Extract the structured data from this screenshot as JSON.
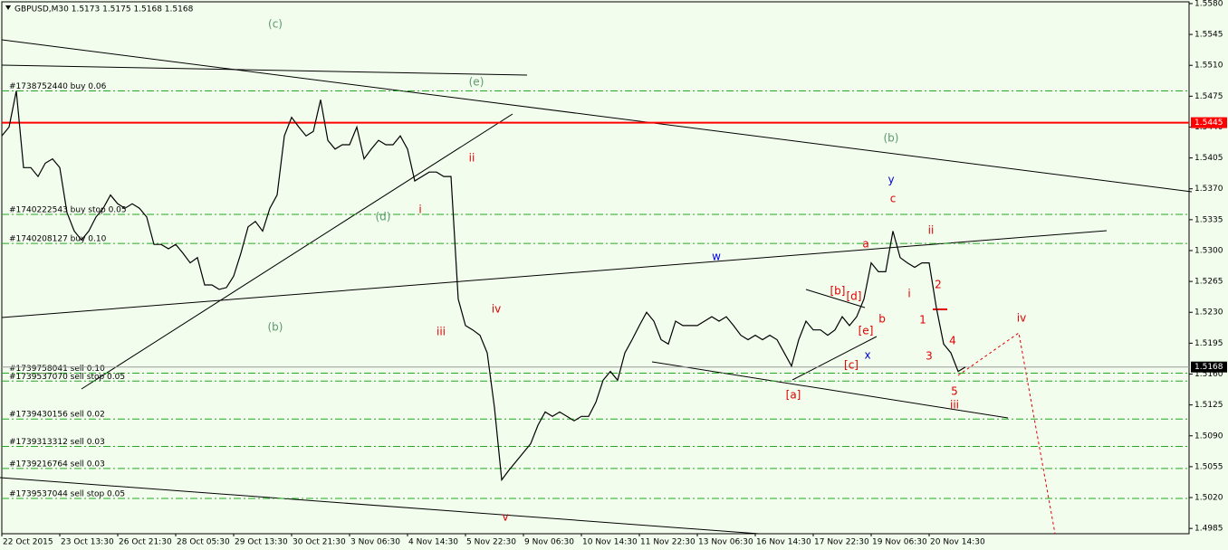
{
  "chart_data": {
    "type": "line",
    "title": "GBPUSD,M30  1.5173 1.5175 1.5168 1.5168",
    "color": "#000000",
    "categories": [
      "22 Oct 2015",
      null,
      null,
      null,
      null,
      null,
      null,
      null,
      "23 Oct 13:30",
      null,
      null,
      null,
      null,
      null,
      null,
      null,
      "26 Oct 21:30",
      null,
      null,
      null,
      null,
      null,
      null,
      null,
      "28 Oct 05:30",
      null,
      null,
      null,
      null,
      null,
      null,
      null,
      "29 Oct 13:30",
      null,
      null,
      null,
      null,
      null,
      null,
      null,
      "30 Oct 21:30",
      null,
      null,
      null,
      null,
      null,
      null,
      null,
      "3 Nov 06:30",
      null,
      null,
      null,
      null,
      null,
      null,
      null,
      "4 Nov 14:30",
      null,
      null,
      null,
      null,
      null,
      null,
      null,
      "5 Nov 22:30",
      null,
      null,
      null,
      null,
      null,
      null,
      null,
      "9 Nov 06:30",
      null,
      null,
      null,
      null,
      null,
      null,
      null,
      "10 Nov 14:30",
      null,
      null,
      null,
      null,
      null,
      null,
      null,
      "11 Nov 22:30",
      null,
      null,
      null,
      null,
      null,
      null,
      null,
      "13 Nov 06:30",
      null,
      null,
      null,
      null,
      null,
      null,
      null,
      "16 Nov 14:30",
      null,
      null,
      null,
      null,
      null,
      null,
      null,
      "17 Nov 22:30",
      null,
      null,
      null,
      null,
      null,
      null,
      null,
      "19 Nov 06:30",
      null,
      null,
      null,
      null,
      null,
      null,
      null,
      "20 Nov 14:30",
      null,
      null,
      null,
      null,
      null
    ],
    "values": [
      1.543,
      1.544,
      1.5481,
      1.5394,
      1.5394,
      1.5384,
      1.5399,
      1.5404,
      1.5394,
      1.5343,
      1.5322,
      1.5312,
      1.5322,
      1.5338,
      1.5348,
      1.5363,
      1.5353,
      1.5348,
      1.5353,
      1.5348,
      1.5338,
      1.5307,
      1.5307,
      1.5302,
      1.5307,
      1.5297,
      1.5286,
      1.5292,
      1.5261,
      1.5261,
      1.5256,
      1.5258,
      1.5271,
      1.5297,
      1.5327,
      1.5333,
      1.5322,
      1.5348,
      1.5363,
      1.543,
      1.5451,
      1.544,
      1.543,
      1.5435,
      1.5471,
      1.5425,
      1.5415,
      1.542,
      1.542,
      1.544,
      1.5404,
      1.5415,
      1.5425,
      1.542,
      1.542,
      1.543,
      1.5415,
      1.5379,
      1.5384,
      1.5389,
      1.5389,
      1.5384,
      1.5384,
      1.5245,
      1.5215,
      1.521,
      1.5204,
      1.5184,
      1.5122,
      1.504,
      1.5051,
      1.5061,
      1.5071,
      1.5081,
      1.5102,
      1.5117,
      1.5112,
      1.5117,
      1.5112,
      1.5107,
      1.5112,
      1.5112,
      1.5128,
      1.5153,
      1.5163,
      1.5153,
      1.5184,
      1.5199,
      1.5215,
      1.523,
      1.522,
      1.5199,
      1.5194,
      1.522,
      1.5215,
      1.5215,
      1.5215,
      1.522,
      1.5225,
      1.522,
      1.5225,
      1.5215,
      1.5204,
      1.5199,
      1.5204,
      1.5199,
      1.5204,
      1.5199,
      1.5184,
      1.5169,
      1.5199,
      1.522,
      1.521,
      1.521,
      1.5204,
      1.521,
      1.5225,
      1.5215,
      1.5225,
      1.5245,
      1.5286,
      1.5276,
      1.5276,
      1.5322,
      1.5292,
      1.5286,
      1.5281,
      1.5286,
      1.5286,
      1.5235,
      1.5194,
      1.5184,
      1.5163,
      1.5168
    ],
    "ylim": [
      1.4979,
      1.5582
    ],
    "yticks": [
      {
        "value": 1.558,
        "label": "1.5580"
      },
      1.5545,
      {
        "value": 1.551,
        "label": "1.5510"
      },
      1.5475,
      {
        "value": 1.544,
        "label": "1.5440"
      },
      1.5405,
      {
        "value": 1.537,
        "label": "1.5370"
      },
      1.5335,
      {
        "value": 1.53,
        "label": "1.5300"
      },
      1.5265,
      {
        "value": 1.523,
        "label": "1.5230"
      },
      1.5195,
      {
        "value": 1.516,
        "label": "1.5160"
      },
      1.5125,
      {
        "value": 1.509,
        "label": "1.5090"
      },
      1.5055,
      {
        "value": 1.502,
        "label": "1.5020"
      },
      1.4985
    ],
    "level_line": {
      "value": 1.5445,
      "color": "#ff0000"
    },
    "bid_line": 1.5168,
    "orders": [
      {
        "label": "#1738752440 buy 0.06",
        "value": 1.5481
      },
      {
        "label": "#1740222543 buy stop 0.05",
        "value": 1.5341
      },
      {
        "label": "#1740208127 buy 0.10",
        "value": 1.5308
      },
      {
        "label": "#1739758041 sell 0.10",
        "value": 1.5161
      },
      {
        "label": "#1739537070 sell stop 0.05",
        "value": 1.5152
      },
      {
        "label": "#1739430156 sell 0.02",
        "value": 1.5109
      },
      {
        "label": "#1739313312 sell 0.03",
        "value": 1.5078
      },
      {
        "label": "#1739216764 sell 0.03",
        "value": 1.5053
      },
      {
        "label": "#1739537044 sell stop 0.05",
        "value": 1.5019
      }
    ],
    "annotations": [
      {
        "text": "(c)",
        "color": "#5b9a70"
      },
      {
        "text": "(e)",
        "color": "#5b9a70"
      },
      {
        "text": "(d)",
        "color": "#5b9a70"
      },
      {
        "text": "(b)",
        "color": "#5b9a70"
      },
      {
        "text": "(b)",
        "color": "#5b9a70"
      },
      {
        "text": "ii",
        "color": "#e00000"
      },
      {
        "text": "i",
        "color": "#e00000"
      },
      {
        "text": "iii",
        "color": "#e00000"
      },
      {
        "text": "iv",
        "color": "#e00000"
      },
      {
        "text": "v",
        "color": "#e00000"
      },
      {
        "text": "[a]",
        "color": "#e00000"
      },
      {
        "text": "[b]",
        "color": "#e00000"
      },
      {
        "text": "[c]",
        "color": "#e00000"
      },
      {
        "text": "[d]",
        "color": "#e00000"
      },
      {
        "text": "[e]",
        "color": "#e00000"
      },
      {
        "text": "a",
        "color": "#e00000"
      },
      {
        "text": "b",
        "color": "#e00000"
      },
      {
        "text": "c",
        "color": "#e00000"
      },
      {
        "text": "i",
        "color": "#e00000"
      },
      {
        "text": "ii",
        "color": "#e00000"
      },
      {
        "text": "1",
        "color": "#e00000"
      },
      {
        "text": "2",
        "color": "#e00000"
      },
      {
        "text": "3",
        "color": "#e00000"
      },
      {
        "text": "4",
        "color": "#e00000"
      },
      {
        "text": "5",
        "color": "#e00000"
      },
      {
        "text": "iii",
        "color": "#e00000"
      },
      {
        "text": "iv",
        "color": "#e00000"
      },
      {
        "text": "w",
        "color": "#0000e0"
      },
      {
        "text": "x",
        "color": "#0000e0"
      },
      {
        "text": "y",
        "color": "#0000e0"
      }
    ]
  }
}
